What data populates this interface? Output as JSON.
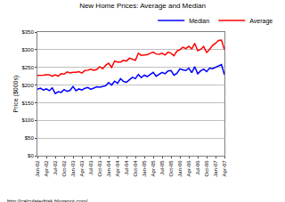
{
  "chart_data": {
    "type": "line",
    "title": "New Home Prices: Average and Median",
    "y_label": "Price ($000s)",
    "annotations": [
      "http://calculatedrisk.blogspot.com/"
    ],
    "categories": [
      "Jan-02",
      null,
      null,
      "Apr-02",
      null,
      null,
      "Jul-02",
      null,
      null,
      "Oct-02",
      null,
      null,
      "Jan-03",
      null,
      null,
      "Apr-03",
      null,
      null,
      "Jul-03",
      null,
      null,
      "Oct-03",
      null,
      null,
      "Jan-04",
      null,
      null,
      "Apr-04",
      null,
      null,
      "Jul-04",
      null,
      null,
      "Oct-04",
      null,
      null,
      "Jan-05",
      null,
      null,
      "Apr-05",
      null,
      null,
      "Jul-05",
      null,
      null,
      "Oct-05",
      null,
      null,
      "Jan-06",
      null,
      null,
      "Apr-06",
      null,
      null,
      "Jul-06",
      null,
      null,
      "Oct-06",
      null,
      null,
      "Jan-07",
      null,
      null,
      "Apr-07"
    ],
    "series": [
      {
        "name": "Median",
        "color": "#0000ff",
        "values": [
          188,
          191,
          186,
          189,
          184,
          192,
          176,
          181,
          179,
          187,
          182,
          185,
          196,
          184,
          189,
          186,
          191,
          193,
          188,
          192,
          195,
          194,
          196,
          198,
          207,
          200,
          211,
          205,
          218,
          210,
          208,
          214,
          222,
          218,
          230,
          221,
          228,
          224,
          231,
          236,
          225,
          230,
          236,
          232,
          240,
          241,
          228,
          233,
          246,
          243,
          241,
          248,
          235,
          252,
          232,
          240,
          245,
          238,
          248,
          246,
          250,
          252,
          258,
          229
        ]
      },
      {
        "name": "Average",
        "color": "#ff0000",
        "values": [
          227,
          227,
          228,
          229,
          229,
          225,
          229,
          225,
          232,
          231,
          237,
          234,
          236,
          236,
          238,
          234,
          241,
          242,
          245,
          242,
          244,
          252,
          246,
          256,
          262,
          250,
          268,
          265,
          265,
          270,
          268,
          276,
          272,
          270,
          290,
          284,
          285,
          286,
          290,
          293,
          288,
          287,
          290,
          285,
          293,
          290,
          283,
          296,
          300,
          307,
          303,
          310,
          302,
          318,
          297,
          301,
          309,
          292,
          301,
          312,
          318,
          326,
          327,
          300
        ]
      }
    ],
    "ylim": [
      0,
      350
    ],
    "yticks": [
      {
        "value": 0,
        "label": "$0"
      },
      {
        "value": 50,
        "label": "$50"
      },
      {
        "value": 100,
        "label": "$100"
      },
      {
        "value": 150,
        "label": "$150"
      },
      {
        "value": 200,
        "label": "$200"
      },
      {
        "value": 250,
        "label": "$250"
      },
      {
        "value": 300,
        "label": "$300"
      },
      {
        "value": 350,
        "label": "$350"
      }
    ],
    "grid": true,
    "legend": "top"
  }
}
